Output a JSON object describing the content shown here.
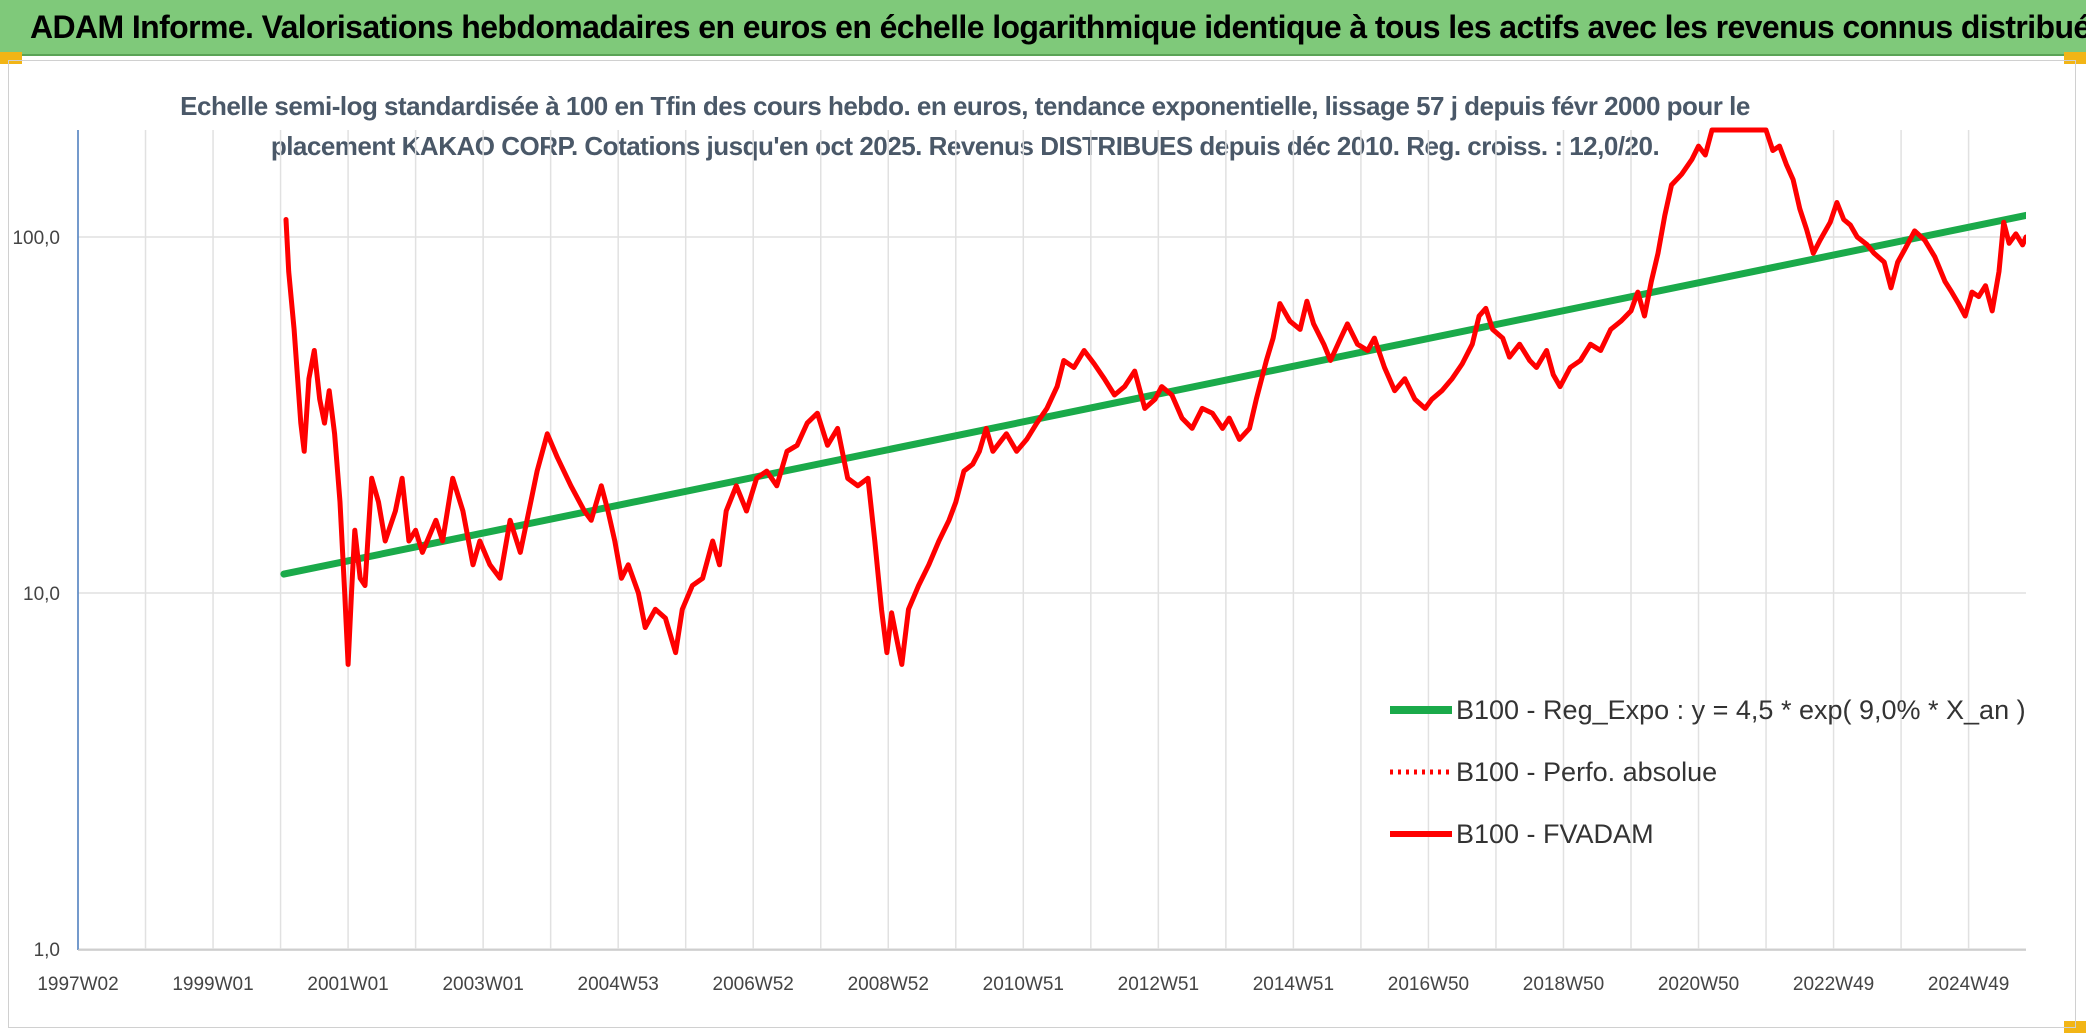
{
  "banner": {
    "title": "ADAM Informe. Valorisations hebdomadaires en euros en échelle logarithmique identique à tous les actifs avec les revenus connus distribués"
  },
  "colors": {
    "banner": "#7fc97a",
    "fvadam": "#ff0000",
    "regression": "#1aaa4a",
    "corner": "#f2b516",
    "gridline": "#e1e1e1"
  },
  "chart_data": {
    "type": "line",
    "title_lines": [
      "Echelle semi-log standardisée à 100 en Tfin des cours hebdo. en euros, tendance exponentielle, lissage 57 j depuis févr 2000 pour le",
      "placement KAKAO CORP. Cotations jusqu'en oct 2025. Revenus DISTRIBUES depuis déc 2010. Reg. croiss. : 12,0/20."
    ],
    "y_scale": "log",
    "ylim": [
      1,
      200
    ],
    "y_ticks": [
      {
        "value": 1,
        "label": "1,0"
      },
      {
        "value": 10,
        "label": "10,0"
      },
      {
        "value": 100,
        "label": "100,0"
      }
    ],
    "xlim": [
      1997.0,
      2025.85
    ],
    "x_ticks": [
      {
        "value": 1997.0,
        "label": "1997W02"
      },
      {
        "value": 1999.0,
        "label": "1999W01"
      },
      {
        "value": 2001.0,
        "label": "2001W01"
      },
      {
        "value": 2003.0,
        "label": "2003W01"
      },
      {
        "value": 2005.0,
        "label": "2004W53"
      },
      {
        "value": 2007.0,
        "label": "2006W52"
      },
      {
        "value": 2009.0,
        "label": "2008W52"
      },
      {
        "value": 2011.0,
        "label": "2010W51"
      },
      {
        "value": 2013.0,
        "label": "2012W51"
      },
      {
        "value": 2015.0,
        "label": "2014W51"
      },
      {
        "value": 2017.0,
        "label": "2016W50"
      },
      {
        "value": 2019.0,
        "label": "2018W50"
      },
      {
        "value": 2021.0,
        "label": "2020W50"
      },
      {
        "value": 2023.0,
        "label": "2022W49"
      },
      {
        "value": 2025.0,
        "label": "2024W49"
      }
    ],
    "x_grid_years": [
      1997,
      1998,
      1999,
      2000,
      2001,
      2002,
      2003,
      2004,
      2005,
      2006,
      2007,
      2008,
      2009,
      2010,
      2011,
      2012,
      2013,
      2014,
      2015,
      2016,
      2017,
      2018,
      2019,
      2020,
      2021,
      2022,
      2023,
      2024,
      2025
    ],
    "legend_position": "right-middle",
    "series": [
      {
        "name": "B100 - Reg_Expo : y = 4,5 * exp( 9,0% *  X_an )",
        "style": "solid-green-thick",
        "points": [
          [
            2000.05,
            11.3
          ],
          [
            2025.85,
            115
          ]
        ]
      },
      {
        "name": "B100 - Perfo. absolue",
        "style": "dotted-red",
        "points": []
      },
      {
        "name": "B100 - FVADAM",
        "style": "solid-red",
        "points": [
          [
            2000.08,
            112
          ],
          [
            2000.12,
            80
          ],
          [
            2000.2,
            55
          ],
          [
            2000.3,
            30
          ],
          [
            2000.35,
            25
          ],
          [
            2000.42,
            40
          ],
          [
            2000.5,
            48
          ],
          [
            2000.58,
            35
          ],
          [
            2000.65,
            30
          ],
          [
            2000.72,
            37
          ],
          [
            2000.8,
            28
          ],
          [
            2000.88,
            18
          ],
          [
            2000.95,
            10
          ],
          [
            2001.0,
            6.3
          ],
          [
            2001.05,
            10
          ],
          [
            2001.1,
            15
          ],
          [
            2001.18,
            11
          ],
          [
            2001.25,
            10.5
          ],
          [
            2001.35,
            21
          ],
          [
            2001.45,
            18
          ],
          [
            2001.55,
            14
          ],
          [
            2001.7,
            17
          ],
          [
            2001.8,
            21
          ],
          [
            2001.9,
            14
          ],
          [
            2002.0,
            15
          ],
          [
            2002.1,
            13
          ],
          [
            2002.3,
            16
          ],
          [
            2002.4,
            14
          ],
          [
            2002.55,
            21
          ],
          [
            2002.7,
            17
          ],
          [
            2002.85,
            12
          ],
          [
            2002.95,
            14
          ],
          [
            2003.1,
            12
          ],
          [
            2003.25,
            11
          ],
          [
            2003.4,
            16
          ],
          [
            2003.55,
            13
          ],
          [
            2003.65,
            16
          ],
          [
            2003.8,
            22
          ],
          [
            2003.95,
            28
          ],
          [
            2004.1,
            24
          ],
          [
            2004.3,
            20
          ],
          [
            2004.5,
            17
          ],
          [
            2004.6,
            16
          ],
          [
            2004.75,
            20
          ],
          [
            2004.85,
            17
          ],
          [
            2004.95,
            14
          ],
          [
            2005.05,
            11
          ],
          [
            2005.15,
            12
          ],
          [
            2005.3,
            10
          ],
          [
            2005.4,
            8
          ],
          [
            2005.55,
            9
          ],
          [
            2005.7,
            8.5
          ],
          [
            2005.85,
            6.8
          ],
          [
            2005.95,
            9
          ],
          [
            2006.1,
            10.5
          ],
          [
            2006.25,
            11
          ],
          [
            2006.4,
            14
          ],
          [
            2006.5,
            12
          ],
          [
            2006.6,
            17
          ],
          [
            2006.75,
            20
          ],
          [
            2006.9,
            17
          ],
          [
            2007.05,
            21
          ],
          [
            2007.2,
            22
          ],
          [
            2007.35,
            20
          ],
          [
            2007.5,
            25
          ],
          [
            2007.65,
            26
          ],
          [
            2007.8,
            30
          ],
          [
            2007.95,
            32
          ],
          [
            2008.1,
            26
          ],
          [
            2008.25,
            29
          ],
          [
            2008.4,
            21
          ],
          [
            2008.55,
            20
          ],
          [
            2008.7,
            21
          ],
          [
            2008.8,
            14
          ],
          [
            2008.9,
            9
          ],
          [
            2008.98,
            6.8
          ],
          [
            2009.05,
            8.8
          ],
          [
            2009.12,
            7.5
          ],
          [
            2009.2,
            6.3
          ],
          [
            2009.3,
            9
          ],
          [
            2009.45,
            10.5
          ],
          [
            2009.6,
            12
          ],
          [
            2009.75,
            14
          ],
          [
            2009.9,
            16
          ],
          [
            2010.0,
            18
          ],
          [
            2010.12,
            22
          ],
          [
            2010.25,
            23
          ],
          [
            2010.35,
            25
          ],
          [
            2010.45,
            29
          ],
          [
            2010.55,
            25
          ],
          [
            2010.75,
            28
          ],
          [
            2010.9,
            25
          ],
          [
            2011.05,
            27
          ],
          [
            2011.2,
            30
          ],
          [
            2011.35,
            33
          ],
          [
            2011.5,
            38
          ],
          [
            2011.6,
            45
          ],
          [
            2011.75,
            43
          ],
          [
            2011.9,
            48
          ],
          [
            2012.05,
            44
          ],
          [
            2012.2,
            40
          ],
          [
            2012.35,
            36
          ],
          [
            2012.5,
            38
          ],
          [
            2012.65,
            42
          ],
          [
            2012.8,
            33
          ],
          [
            2012.95,
            35
          ],
          [
            2013.05,
            38
          ],
          [
            2013.2,
            36
          ],
          [
            2013.35,
            31
          ],
          [
            2013.5,
            29
          ],
          [
            2013.65,
            33
          ],
          [
            2013.8,
            32
          ],
          [
            2013.95,
            29
          ],
          [
            2014.05,
            31
          ],
          [
            2014.2,
            27
          ],
          [
            2014.35,
            29
          ],
          [
            2014.45,
            35
          ],
          [
            2014.6,
            45
          ],
          [
            2014.7,
            52
          ],
          [
            2014.8,
            65
          ],
          [
            2014.95,
            58
          ],
          [
            2015.1,
            55
          ],
          [
            2015.2,
            66
          ],
          [
            2015.3,
            57
          ],
          [
            2015.45,
            50
          ],
          [
            2015.55,
            45
          ],
          [
            2015.7,
            52
          ],
          [
            2015.8,
            57
          ],
          [
            2015.95,
            50
          ],
          [
            2016.1,
            48
          ],
          [
            2016.2,
            52
          ],
          [
            2016.35,
            43
          ],
          [
            2016.5,
            37
          ],
          [
            2016.65,
            40
          ],
          [
            2016.8,
            35
          ],
          [
            2016.95,
            33
          ],
          [
            2017.05,
            35
          ],
          [
            2017.2,
            37
          ],
          [
            2017.35,
            40
          ],
          [
            2017.5,
            44
          ],
          [
            2017.65,
            50
          ],
          [
            2017.75,
            60
          ],
          [
            2017.85,
            63
          ],
          [
            2017.95,
            55
          ],
          [
            2018.1,
            52
          ],
          [
            2018.2,
            46
          ],
          [
            2018.35,
            50
          ],
          [
            2018.5,
            45
          ],
          [
            2018.6,
            43
          ],
          [
            2018.75,
            48
          ],
          [
            2018.85,
            41
          ],
          [
            2018.95,
            38
          ],
          [
            2019.1,
            43
          ],
          [
            2019.25,
            45
          ],
          [
            2019.4,
            50
          ],
          [
            2019.55,
            48
          ],
          [
            2019.7,
            55
          ],
          [
            2019.85,
            58
          ],
          [
            2020.0,
            62
          ],
          [
            2020.1,
            70
          ],
          [
            2020.2,
            60
          ],
          [
            2020.3,
            75
          ],
          [
            2020.4,
            90
          ],
          [
            2020.5,
            115
          ],
          [
            2020.6,
            140
          ],
          [
            2020.75,
            150
          ],
          [
            2020.9,
            165
          ],
          [
            2021.0,
            180
          ],
          [
            2021.1,
            170
          ],
          [
            2021.2,
            200
          ],
          [
            2021.35,
            210
          ],
          [
            2021.55,
            215
          ],
          [
            2021.7,
            205
          ],
          [
            2021.85,
            200
          ],
          [
            2022.0,
            210
          ],
          [
            2022.1,
            175
          ],
          [
            2022.2,
            180
          ],
          [
            2022.3,
            160
          ],
          [
            2022.4,
            145
          ],
          [
            2022.5,
            120
          ],
          [
            2022.6,
            105
          ],
          [
            2022.7,
            90
          ],
          [
            2022.8,
            98
          ],
          [
            2022.95,
            110
          ],
          [
            2023.05,
            125
          ],
          [
            2023.15,
            112
          ],
          [
            2023.25,
            108
          ],
          [
            2023.35,
            100
          ],
          [
            2023.5,
            95
          ],
          [
            2023.6,
            90
          ],
          [
            2023.75,
            85
          ],
          [
            2023.85,
            72
          ],
          [
            2023.95,
            85
          ],
          [
            2024.05,
            92
          ],
          [
            2024.2,
            104
          ],
          [
            2024.35,
            98
          ],
          [
            2024.5,
            88
          ],
          [
            2024.65,
            75
          ],
          [
            2024.75,
            70
          ],
          [
            2024.85,
            65
          ],
          [
            2024.95,
            60
          ],
          [
            2025.05,
            70
          ],
          [
            2025.15,
            68
          ],
          [
            2025.25,
            73
          ],
          [
            2025.35,
            62
          ],
          [
            2025.45,
            80
          ],
          [
            2025.52,
            110
          ],
          [
            2025.6,
            96
          ],
          [
            2025.7,
            102
          ],
          [
            2025.8,
            95
          ],
          [
            2025.85,
            100
          ]
        ]
      }
    ]
  }
}
